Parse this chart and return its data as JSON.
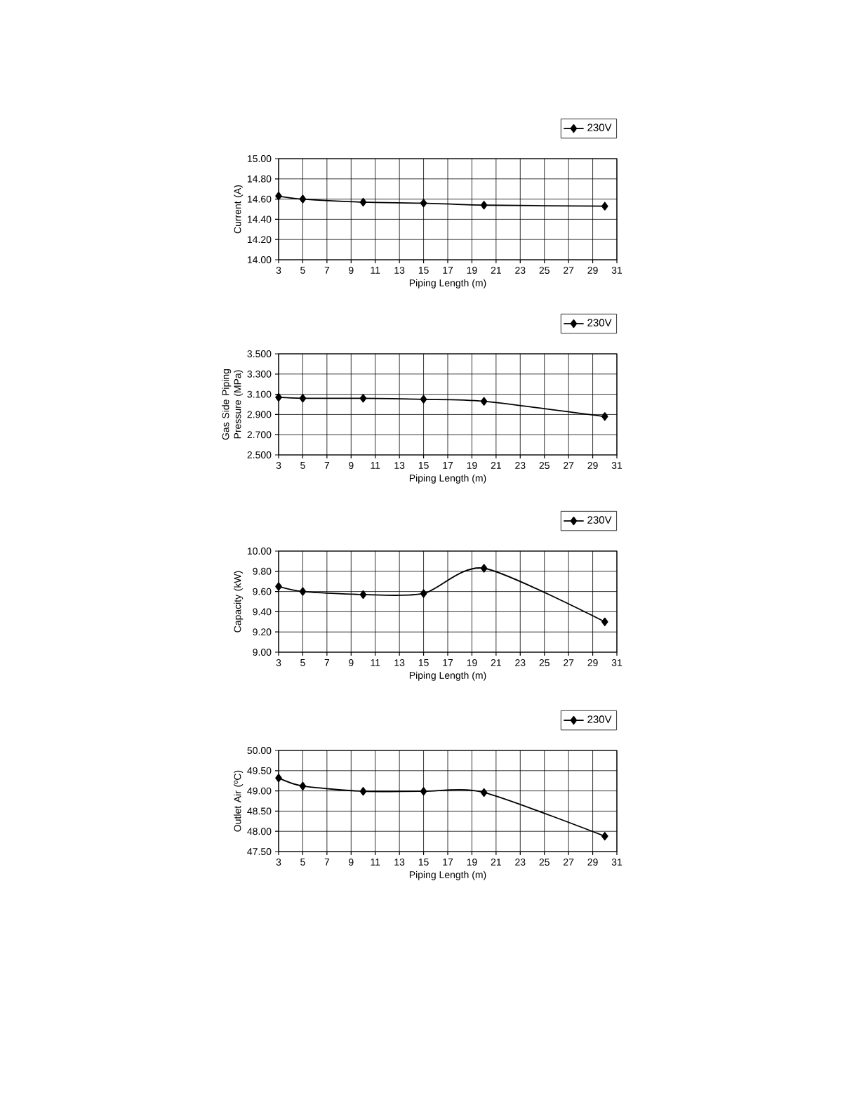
{
  "chart_data": [
    {
      "type": "line",
      "xlabel": "Piping Length (m)",
      "ylabel": "Current (A)",
      "x": [
        3,
        5,
        10,
        15,
        20,
        30
      ],
      "series": [
        {
          "name": "230V",
          "color": "#000000",
          "values": [
            14.63,
            14.6,
            14.57,
            14.56,
            14.54,
            14.53
          ]
        }
      ],
      "xlim": [
        3,
        31
      ],
      "xticks": [
        3,
        5,
        7,
        9,
        11,
        13,
        15,
        17,
        19,
        21,
        23,
        25,
        27,
        29,
        31
      ],
      "ylim": [
        14.0,
        15.0
      ],
      "yticks": [
        {
          "value": 14.0,
          "label": "14.00"
        },
        {
          "value": 14.2,
          "label": "14.20"
        },
        {
          "value": 14.4,
          "label": "14.40"
        },
        {
          "value": 14.6,
          "label": "14.60"
        },
        {
          "value": 14.8,
          "label": "14.80"
        },
        {
          "value": 15.0,
          "label": "15.00"
        }
      ],
      "grid": true,
      "legend": "top right",
      "marker": "diamond",
      "line_style": "solid"
    },
    {
      "type": "line",
      "xlabel": "Piping Length (m)",
      "ylabel": "Gas Side Piping Pressure (MPa)",
      "x": [
        3,
        5,
        10,
        15,
        20,
        30
      ],
      "series": [
        {
          "name": "230V",
          "color": "#000000",
          "values": [
            3.07,
            3.06,
            3.06,
            3.05,
            3.03,
            2.88
          ]
        }
      ],
      "xlim": [
        3,
        31
      ],
      "xticks": [
        3,
        5,
        7,
        9,
        11,
        13,
        15,
        17,
        19,
        21,
        23,
        25,
        27,
        29,
        31
      ],
      "ylim": [
        2.5,
        3.5
      ],
      "yticks": [
        {
          "value": 2.5,
          "label": "2.500"
        },
        {
          "value": 2.7,
          "label": "2.700"
        },
        {
          "value": 2.9,
          "label": "2.900"
        },
        {
          "value": 3.1,
          "label": "3.100"
        },
        {
          "value": 3.3,
          "label": "3.300"
        },
        {
          "value": 3.5,
          "label": "3.500"
        }
      ],
      "grid": true,
      "legend": "top right",
      "marker": "diamond",
      "line_style": "solid"
    },
    {
      "type": "line",
      "xlabel": "Piping Length (m)",
      "ylabel": "Capacity (kW)",
      "x": [
        3,
        5,
        10,
        15,
        20,
        30
      ],
      "series": [
        {
          "name": "230V",
          "color": "#000000",
          "values": [
            9.65,
            9.6,
            9.57,
            9.58,
            9.83,
            9.3
          ]
        }
      ],
      "xlim": [
        3,
        31
      ],
      "xticks": [
        3,
        5,
        7,
        9,
        11,
        13,
        15,
        17,
        19,
        21,
        23,
        25,
        27,
        29,
        31
      ],
      "ylim": [
        9.0,
        10.0
      ],
      "yticks": [
        {
          "value": 9.0,
          "label": "9.00"
        },
        {
          "value": 9.2,
          "label": "9.20"
        },
        {
          "value": 9.4,
          "label": "9.40"
        },
        {
          "value": 9.6,
          "label": "9.60"
        },
        {
          "value": 9.8,
          "label": "9.80"
        },
        {
          "value": 10.0,
          "label": "10.00"
        }
      ],
      "grid": true,
      "legend": "top right",
      "marker": "diamond",
      "line_style": "solid"
    },
    {
      "type": "line",
      "xlabel": "Piping Length (m)",
      "ylabel": "Outlet Air (ºC)",
      "x": [
        3,
        5,
        10,
        15,
        20,
        30
      ],
      "series": [
        {
          "name": "230V",
          "color": "#000000",
          "values": [
            49.32,
            49.12,
            48.99,
            48.99,
            48.96,
            47.88
          ]
        }
      ],
      "xlim": [
        3,
        31
      ],
      "xticks": [
        3,
        5,
        7,
        9,
        11,
        13,
        15,
        17,
        19,
        21,
        23,
        25,
        27,
        29,
        31
      ],
      "ylim": [
        47.5,
        50.0
      ],
      "yticks": [
        {
          "value": 47.5,
          "label": "47.50"
        },
        {
          "value": 48.0,
          "label": "48.00"
        },
        {
          "value": 48.5,
          "label": "48.50"
        },
        {
          "value": 49.0,
          "label": "49.00"
        },
        {
          "value": 49.5,
          "label": "49.50"
        },
        {
          "value": 50.0,
          "label": "50.00"
        }
      ],
      "grid": true,
      "legend": "top right",
      "marker": "diamond",
      "line_style": "solid"
    }
  ]
}
